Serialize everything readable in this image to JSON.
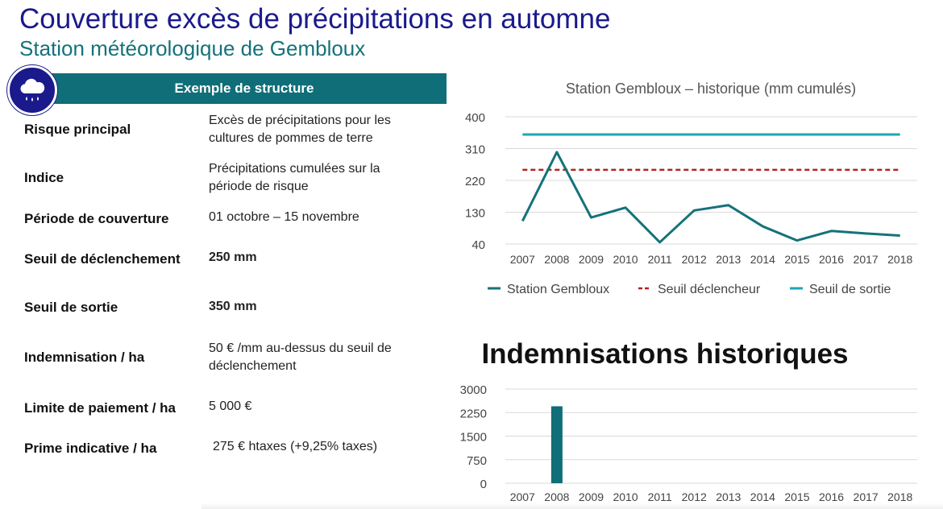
{
  "header": {
    "title": "Couverture excès de précipitations en automne",
    "subtitle": "Station météorologique de Gembloux"
  },
  "icon": "rain-cloud-icon",
  "colors": {
    "navy": "#1a1a8c",
    "teal": "#0f6e78",
    "dark_teal": "#15727a",
    "threshold_red": "#b22222",
    "exit_cyan": "#1fa5b8"
  },
  "table": {
    "banner": "Exemple de structure",
    "rows": [
      {
        "label": "Risque principal",
        "value": "Excès de précipitations pour les cultures de pommes de terre"
      },
      {
        "label": "Indice",
        "value": "Précipitations cumulées sur la période de risque"
      },
      {
        "label": "Période de couverture",
        "value": "01 octobre – 15 novembre"
      },
      {
        "label": "Seuil de déclenchement",
        "value": "250 mm"
      },
      {
        "label": "Seuil de sortie",
        "value": "350 mm"
      },
      {
        "label": "Indemnisation / ha",
        "value": "50 € /mm au-dessus du seuil de déclenchement"
      },
      {
        "label": "Limite de paiement / ha",
        "value": "5 000 €"
      },
      {
        "label": "Prime indicative / ha",
        "value": "275 € htaxes (+9,25% taxes)"
      }
    ]
  },
  "chart_data": [
    {
      "type": "line",
      "title": "Station Gembloux – historique (mm cumulés)",
      "x": [
        "2007",
        "2008",
        "2009",
        "2010",
        "2011",
        "2012",
        "2013",
        "2014",
        "2015",
        "2016",
        "2017",
        "2018"
      ],
      "yticks": [
        "400",
        "310",
        "220",
        "130",
        "40"
      ],
      "ylim": [
        40,
        400
      ],
      "series": [
        {
          "name": "Station Gembloux",
          "values": [
            105,
            300,
            115,
            143,
            45,
            135,
            150,
            90,
            50,
            77,
            70,
            64
          ],
          "color": "#15727a",
          "style": "solid"
        },
        {
          "name": "Seuil déclencheur",
          "values": [
            250,
            250,
            250,
            250,
            250,
            250,
            250,
            250,
            250,
            250,
            250,
            250
          ],
          "color": "#b22222",
          "style": "dashed"
        },
        {
          "name": "Seuil de sortie",
          "values": [
            350,
            350,
            350,
            350,
            350,
            350,
            350,
            350,
            350,
            350,
            350,
            350
          ],
          "color": "#1fa5b8",
          "style": "solid"
        }
      ],
      "legend": "bottom",
      "grid": "horizontal"
    },
    {
      "type": "bar",
      "title": "Indemnisations historiques",
      "categories": [
        "2007",
        "2008",
        "2009",
        "2010",
        "2011",
        "2012",
        "2013",
        "2014",
        "2015",
        "2016",
        "2017",
        "2018"
      ],
      "values": [
        0,
        2450,
        0,
        0,
        0,
        0,
        0,
        0,
        0,
        0,
        0,
        0
      ],
      "yticks": [
        "3000",
        "2250",
        "1500",
        "750",
        "0"
      ],
      "ylim": [
        0,
        3000
      ],
      "color": "#0f6e78",
      "grid": "horizontal"
    }
  ]
}
